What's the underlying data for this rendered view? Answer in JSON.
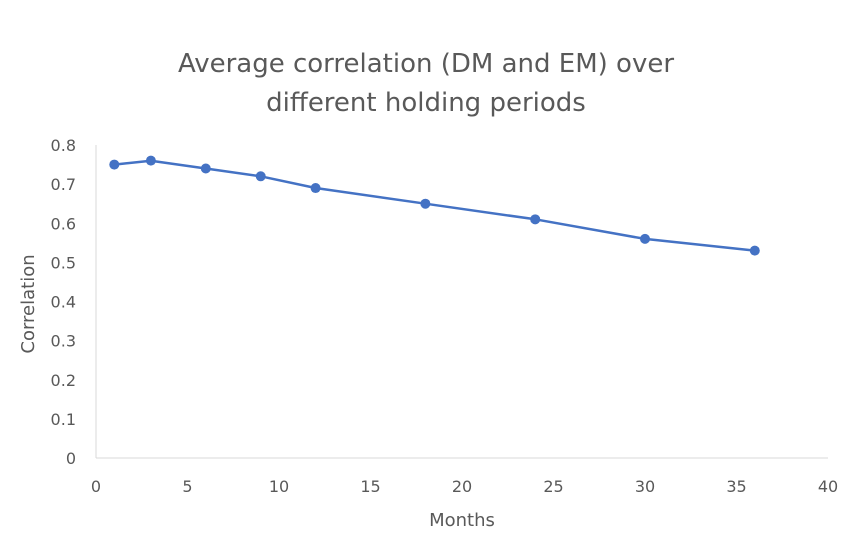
{
  "chart_data": {
    "type": "scatter",
    "title": "Average correlation (DM and EM) over different holding periods",
    "title_lines": [
      "Average correlation (DM and EM) over",
      "different holding periods"
    ],
    "xlabel": "Months",
    "ylabel": "Correlation",
    "xlim": [
      0,
      40
    ],
    "ylim": [
      0,
      0.8
    ],
    "x_ticks": [
      "0",
      "5",
      "10",
      "15",
      "20",
      "25",
      "30",
      "35",
      "40"
    ],
    "y_ticks": [
      "0",
      "0.1",
      "0.2",
      "0.3",
      "0.4",
      "0.5",
      "0.6",
      "0.7",
      "0.8"
    ],
    "grid": false,
    "legend": "none",
    "series": [
      {
        "color": "#4472C4",
        "x": [
          1,
          3,
          6,
          9,
          12,
          18,
          24,
          30,
          36
        ],
        "y": [
          0.75,
          0.76,
          0.74,
          0.72,
          0.69,
          0.65,
          0.61,
          0.56,
          0.53
        ]
      }
    ]
  }
}
